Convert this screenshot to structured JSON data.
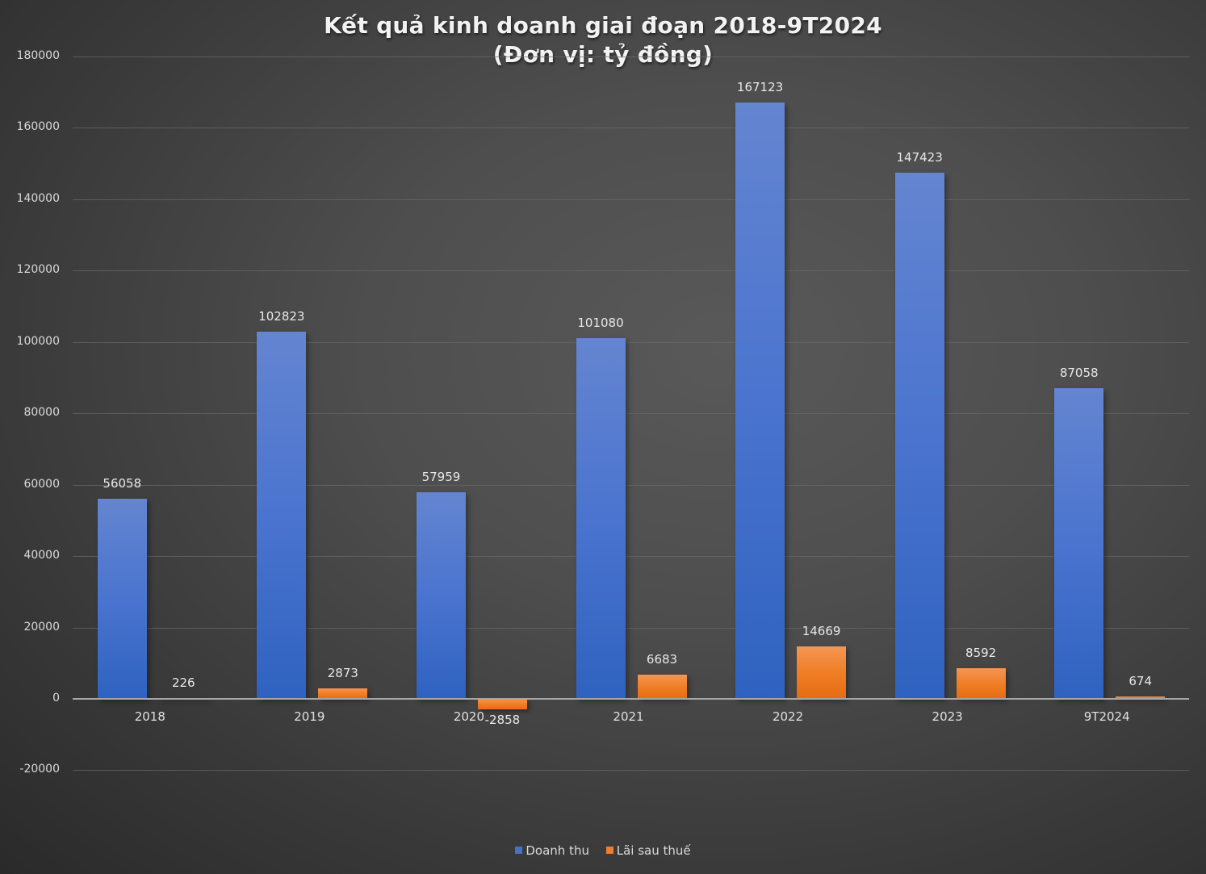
{
  "chart_data": {
    "type": "bar",
    "title": "Kết quả kinh doanh giai đoạn 2018-9T2024",
    "subtitle": "(Đơn vị: tỷ đồng)",
    "categories": [
      "2018",
      "2019",
      "2020",
      "2021",
      "2022",
      "2023",
      "9T2024"
    ],
    "series": [
      {
        "name": "Doanh thu",
        "color": "#4472c4",
        "values": [
          56058,
          102823,
          57959,
          101080,
          167123,
          147423,
          87058
        ]
      },
      {
        "name": "Lãi sau thuế",
        "color": "#ed7d31",
        "values": [
          226,
          2873,
          -2858,
          6683,
          14669,
          8592,
          674
        ]
      }
    ],
    "xlabel": "",
    "ylabel": "",
    "ylim": [
      -20000,
      180000
    ],
    "yticks": [
      "180000",
      "160000",
      "140000",
      "120000",
      "100000",
      "80000",
      "60000",
      "40000",
      "20000",
      "0",
      "-20000"
    ],
    "grid": true,
    "legend_position": "bottom",
    "data_labels": true
  }
}
